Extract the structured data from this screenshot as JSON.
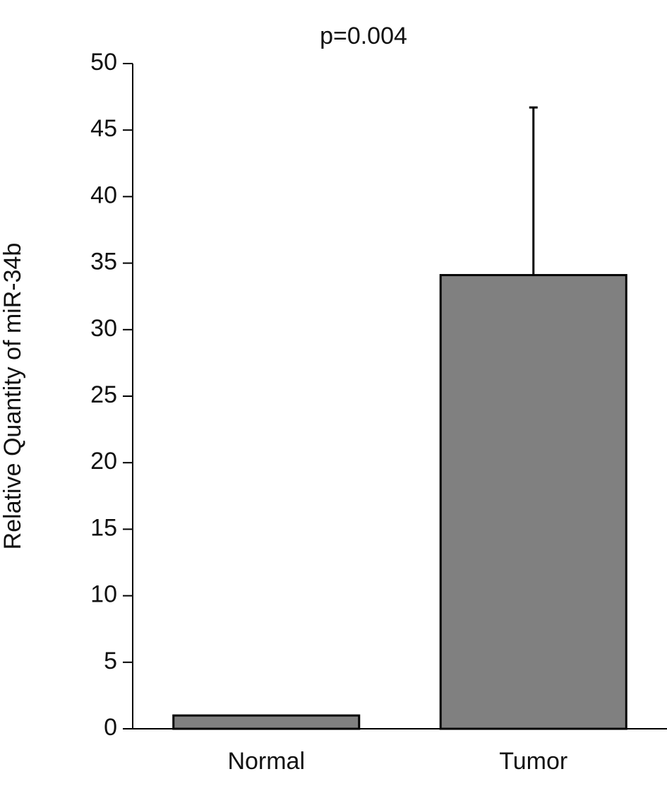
{
  "chart_data": {
    "type": "bar",
    "title": "p=0.004",
    "y_label": "Relative Quantity of miR-34b",
    "categories": [
      "Normal",
      "Tumor"
    ],
    "values": [
      1.0,
      34.1
    ],
    "errors": [
      null,
      12.6
    ],
    "color": "#808080",
    "ylim": [
      0,
      50
    ],
    "yticks": [
      0,
      5,
      10,
      15,
      20,
      25,
      30,
      35,
      40,
      45,
      50
    ]
  }
}
